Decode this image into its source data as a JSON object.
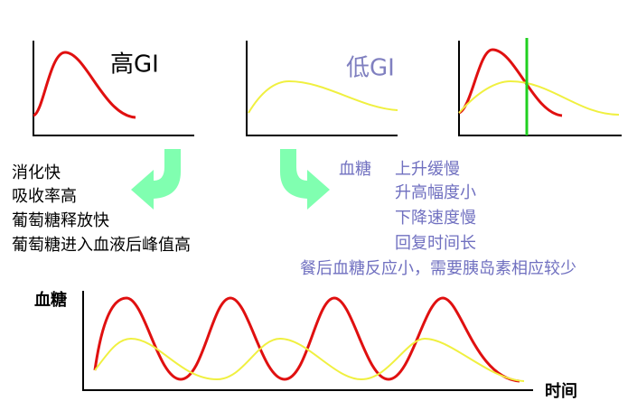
{
  "high_gi_label": "高GI",
  "low_gi_label": "低GI",
  "high_gi_points": [
    "消化快",
    "吸收率高",
    "葡萄糖释放快",
    "葡萄糖进入血液后峰值高"
  ],
  "low_gi_heading": "血糖",
  "low_gi_points": [
    "上升缓慢",
    "升高幅度小",
    "下降速度慢",
    "回复时间长"
  ],
  "low_gi_summary": "餐后血糖反应小，需要胰岛素相应较少",
  "bottom_chart": {
    "y_label": "血糖",
    "x_label": "时间"
  }
}
